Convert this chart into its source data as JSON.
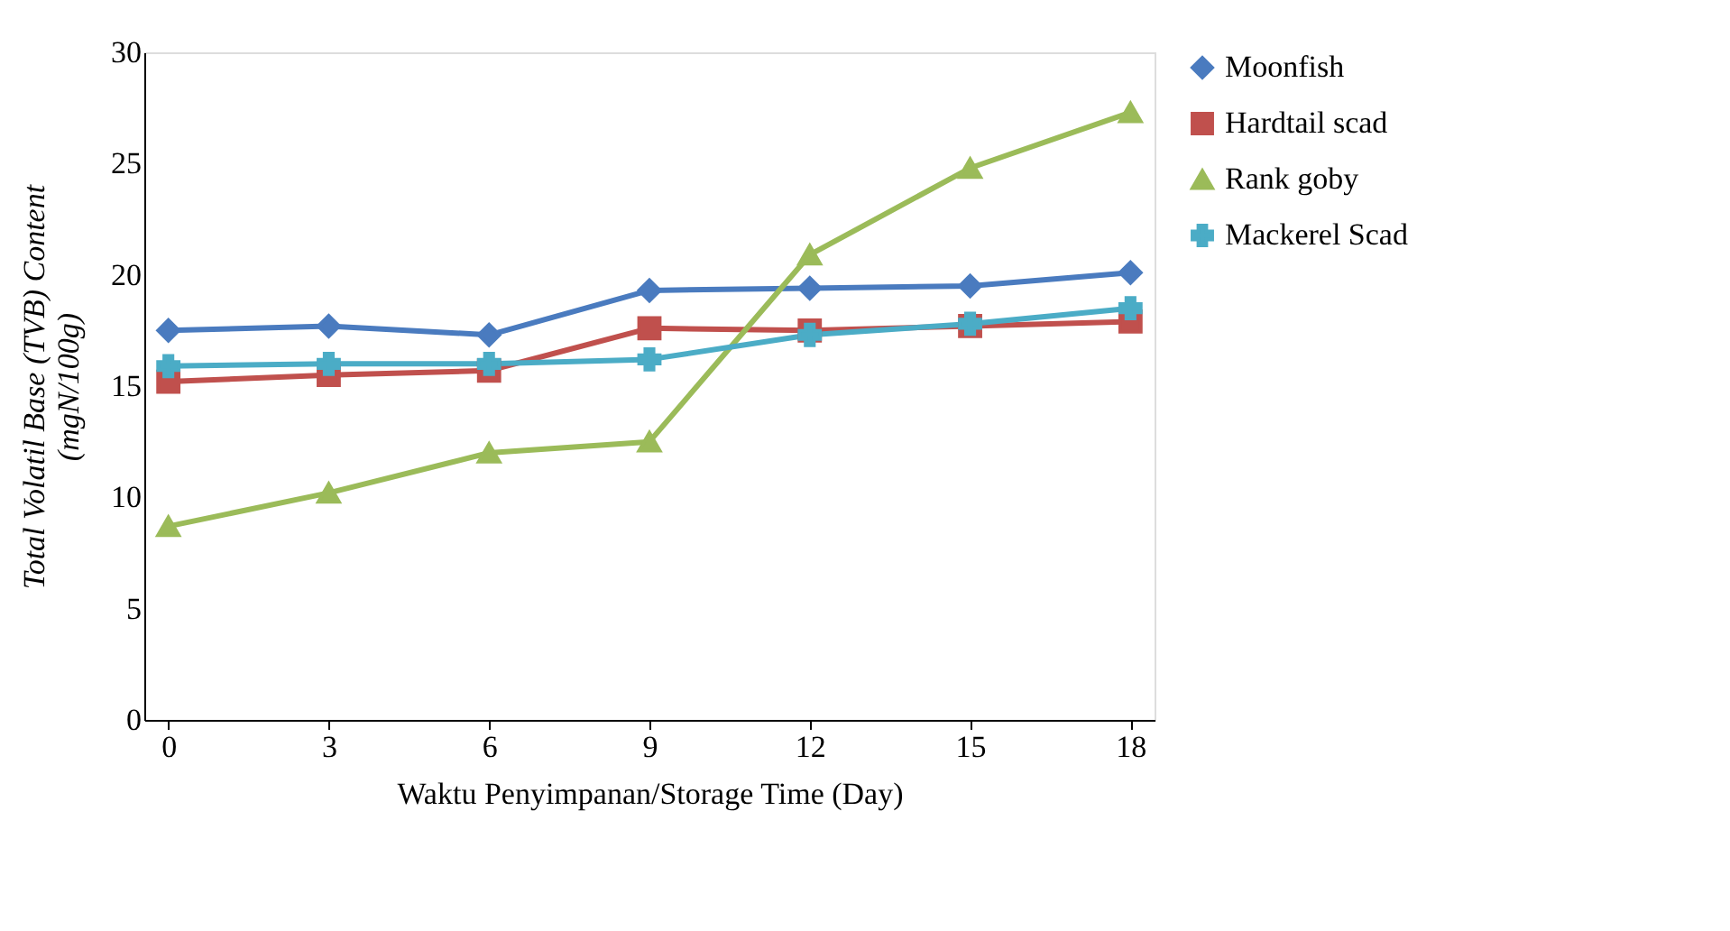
{
  "chart_data": {
    "type": "line",
    "xlabel": "Waktu Penyimpanan/Storage Time (Day)",
    "ylabel": "Total Volatil Base (TVB) Content\n(mgN/100g)",
    "categories": [
      "0",
      "3",
      "6",
      "9",
      "12",
      "15",
      "18"
    ],
    "series": [
      {
        "name": "Moonfish",
        "color": "#4a7bbf",
        "marker": "diamond",
        "values": [
          17.5,
          17.7,
          17.3,
          19.3,
          19.4,
          19.5,
          20.1
        ]
      },
      {
        "name": "Hardtail scad",
        "color": "#c0504d",
        "marker": "square",
        "values": [
          15.2,
          15.5,
          15.7,
          17.6,
          17.5,
          17.7,
          17.9
        ]
      },
      {
        "name": "Rank goby",
        "color": "#9bbb59",
        "marker": "triangle",
        "values": [
          8.7,
          10.2,
          12.0,
          12.5,
          20.9,
          24.8,
          27.3
        ]
      },
      {
        "name": "Mackerel Scad",
        "color": "#4bacc6",
        "marker": "cross",
        "values": [
          15.9,
          16.0,
          16.0,
          16.2,
          17.3,
          17.8,
          18.5
        ]
      }
    ],
    "ylim": [
      0,
      30
    ],
    "yticks": [
      0,
      5,
      10,
      15,
      20,
      25,
      30
    ],
    "grid": false,
    "legend": "right",
    "line_style": "solid"
  }
}
